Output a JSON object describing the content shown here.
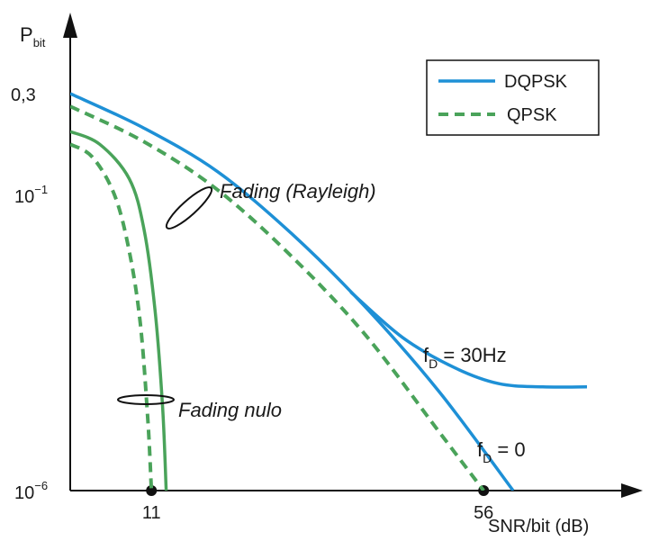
{
  "chart_data": {
    "type": "line",
    "title": "",
    "ylabel": {
      "main": "P",
      "sub": "bit"
    },
    "xlabel": "SNR/bit (dB)",
    "y_scale": "log",
    "ylim": [
      1e-06,
      0.3
    ],
    "xlim": [
      0,
      78
    ],
    "y_ticks": [
      {
        "value": 0.3,
        "label": {
          "base": "0,3",
          "exp": ""
        }
      },
      {
        "value": 0.1,
        "label": {
          "base": "10",
          "exp": "−1"
        }
      },
      {
        "value": 1e-06,
        "label": {
          "base": "10",
          "exp": "−6"
        }
      }
    ],
    "x_ticks": [
      {
        "value": 11,
        "label": "11"
      },
      {
        "value": 56,
        "label": "56"
      }
    ],
    "legend": {
      "placement": "top-right",
      "entries": [
        {
          "label": "DQPSK",
          "color": "#1e90d6",
          "dash": "solid"
        },
        {
          "label": "QPSK",
          "color": "#4aa35a",
          "dash": "dashed"
        }
      ]
    },
    "series": [
      {
        "modulation": "DQPSK",
        "fading": "Rayleigh",
        "color": "#1e90d6",
        "dash": "solid",
        "x": [
          0,
          10,
          20,
          30,
          40,
          50,
          60
        ],
        "y": [
          0.3,
          0.1,
          0.025,
          0.0035,
          0.00034,
          2.3e-05,
          1e-06
        ]
      },
      {
        "modulation": "DQPSK",
        "fading": "Rayleigh",
        "doppler": "f_D = 30Hz",
        "color": "#1e90d6",
        "dash": "solid",
        "x": [
          38,
          45,
          52,
          58,
          64,
          70
        ],
        "y": [
          0.00055,
          0.00013,
          5e-05,
          3e-05,
          2.7e-05,
          2.7e-05
        ]
      },
      {
        "modulation": "QPSK",
        "fading": "Rayleigh",
        "color": "#4aa35a",
        "dash": "dashed",
        "x": [
          0,
          10,
          20,
          30,
          40,
          50,
          56
        ],
        "y": [
          0.2,
          0.065,
          0.014,
          0.0017,
          0.00014,
          6.4e-06,
          1e-06
        ]
      },
      {
        "modulation": "DQPSK",
        "fading": "nulo",
        "color": "#4aa35a",
        "dash": "solid",
        "x": [
          0,
          4,
          8,
          10,
          11.5,
          12.5,
          13
        ],
        "y": [
          0.09,
          0.06,
          0.02,
          0.004,
          0.0003,
          1.5e-05,
          1e-06
        ]
      },
      {
        "modulation": "QPSK",
        "fading": "nulo",
        "color": "#4aa35a",
        "dash": "dashed",
        "x": [
          0,
          3,
          6,
          8,
          9.5,
          10.5,
          11
        ],
        "y": [
          0.06,
          0.04,
          0.012,
          0.002,
          0.0002,
          1e-05,
          1e-06
        ]
      }
    ],
    "annotations": [
      {
        "text": "Fading (Rayleigh)",
        "style": "italic"
      },
      {
        "text": "Fading nulo",
        "style": "italic"
      },
      {
        "text": {
          "base": "f",
          "sub": "D",
          "rest": " = 30Hz"
        }
      },
      {
        "text": {
          "base": "f",
          "sub": "D",
          "rest": " = 0"
        }
      }
    ]
  }
}
